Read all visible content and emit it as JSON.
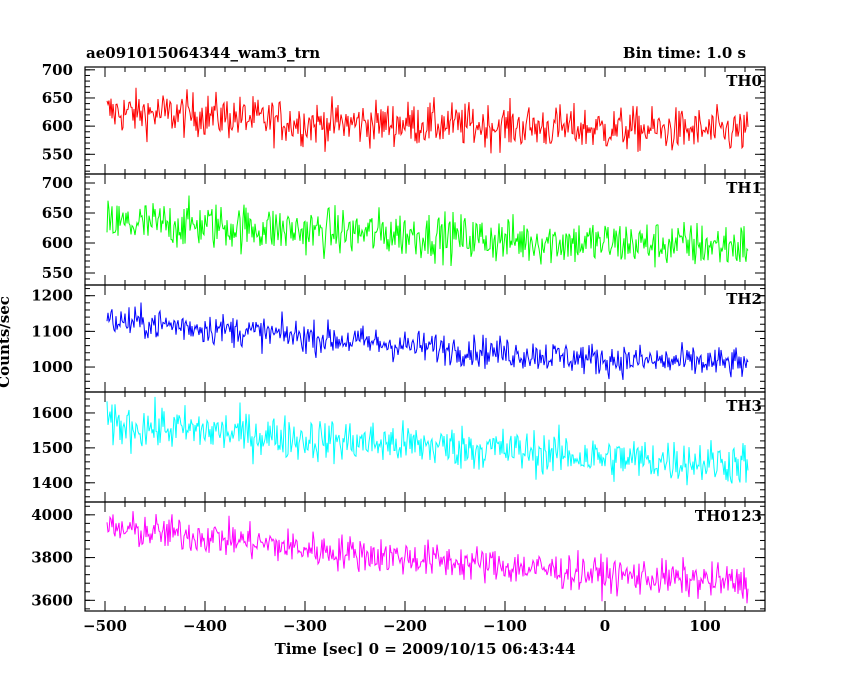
{
  "header": {
    "left_title": "ae091015064344_wam3_trn",
    "right_title": "Bin time: 1.0 s"
  },
  "chart_data": {
    "type": "line",
    "title": "ae091015064344_wam3_trn",
    "bin_time_label": "Bin time: 1.0 s",
    "xlabel": "Time [sec] 0 = 2009/10/15 06:43:44",
    "ylabel": "Counts/sec",
    "xlim": [
      -520,
      160
    ],
    "x_range_data": [
      -498,
      143
    ],
    "x_ticks": [
      -500,
      -400,
      -300,
      -200,
      -100,
      0,
      100
    ],
    "panels": [
      {
        "name": "TH0",
        "color": "#ff0000",
        "ylim": [
          515,
          705
        ],
        "y_ticks": [
          550,
          600,
          650,
          700
        ],
        "trend": [
          {
            "x": -498,
            "y": 625
          },
          {
            "x": -400,
            "y": 620
          },
          {
            "x": -300,
            "y": 605
          },
          {
            "x": -200,
            "y": 605
          },
          {
            "x": -100,
            "y": 600
          },
          {
            "x": 0,
            "y": 595
          },
          {
            "x": 143,
            "y": 590
          }
        ],
        "noise": 28
      },
      {
        "name": "TH1",
        "color": "#00ff00",
        "ylim": [
          530,
          715
        ],
        "y_ticks": [
          550,
          600,
          650,
          700
        ],
        "trend": [
          {
            "x": -498,
            "y": 632
          },
          {
            "x": -400,
            "y": 630
          },
          {
            "x": -300,
            "y": 620
          },
          {
            "x": -200,
            "y": 615
          },
          {
            "x": -100,
            "y": 605
          },
          {
            "x": 0,
            "y": 600
          },
          {
            "x": 143,
            "y": 595
          }
        ],
        "noise": 28
      },
      {
        "name": "TH2",
        "color": "#0000ff",
        "ylim": [
          930,
          1230
        ],
        "y_ticks": [
          1000,
          1100,
          1200
        ],
        "trend": [
          {
            "x": -498,
            "y": 1130
          },
          {
            "x": -400,
            "y": 1110
          },
          {
            "x": -300,
            "y": 1085
          },
          {
            "x": -200,
            "y": 1060
          },
          {
            "x": -100,
            "y": 1040
          },
          {
            "x": 0,
            "y": 1020
          },
          {
            "x": 143,
            "y": 1010
          }
        ],
        "noise": 32
      },
      {
        "name": "TH3",
        "color": "#00ffff",
        "ylim": [
          1345,
          1660
        ],
        "y_ticks": [
          1400,
          1500,
          1600
        ],
        "trend": [
          {
            "x": -498,
            "y": 1565
          },
          {
            "x": -400,
            "y": 1550
          },
          {
            "x": -300,
            "y": 1525
          },
          {
            "x": -200,
            "y": 1510
          },
          {
            "x": -100,
            "y": 1495
          },
          {
            "x": 0,
            "y": 1470
          },
          {
            "x": 143,
            "y": 1455
          }
        ],
        "noise": 45
      },
      {
        "name": "TH0123",
        "color": "#ff00ff",
        "ylim": [
          3550,
          4060
        ],
        "y_ticks": [
          3600,
          3800,
          4000
        ],
        "trend": [
          {
            "x": -498,
            "y": 3935
          },
          {
            "x": -400,
            "y": 3900
          },
          {
            "x": -300,
            "y": 3840
          },
          {
            "x": -200,
            "y": 3800
          },
          {
            "x": -100,
            "y": 3760
          },
          {
            "x": 0,
            "y": 3720
          },
          {
            "x": 143,
            "y": 3680
          }
        ],
        "noise": 60
      }
    ]
  }
}
